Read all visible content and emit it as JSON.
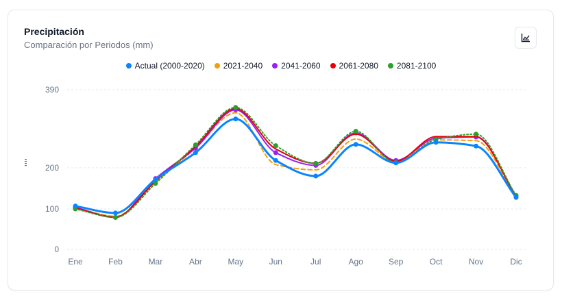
{
  "header": {
    "title": "Precipitación",
    "subtitle": "Comparación por Periodos (mm)"
  },
  "chart_button": {
    "icon": "chart-icon"
  },
  "colors": {
    "grid": "#e5e7eb",
    "tick": "#64748b"
  },
  "chart_data": {
    "type": "line",
    "categories": [
      "Ene",
      "Feb",
      "Mar",
      "Abr",
      "May",
      "Jun",
      "Jul",
      "Ago",
      "Sep",
      "Oct",
      "Nov",
      "Dic"
    ],
    "y_ticks": [
      0,
      100,
      200,
      390
    ],
    "ylim": [
      0,
      390
    ],
    "legend_position": "top",
    "grid": true,
    "series": [
      {
        "name": "Actual (2000-2020)",
        "color": "#0a84ff",
        "dash": "solid",
        "markers": true,
        "values": [
          107,
          90,
          172,
          237,
          319,
          218,
          180,
          257,
          212,
          262,
          253,
          128
        ]
      },
      {
        "name": "2021-2040",
        "color": "#f59e0b",
        "dash": "dashed",
        "markers": false,
        "values": [
          103,
          82,
          165,
          248,
          334,
          208,
          195,
          270,
          215,
          268,
          266,
          130
        ]
      },
      {
        "name": "2041-2060",
        "color": "#9b1ff5",
        "dash": "solid",
        "markers": true,
        "values": [
          104,
          79,
          174,
          248,
          341,
          237,
          206,
          285,
          218,
          272,
          275,
          132
        ]
      },
      {
        "name": "2061-2080",
        "color": "#e8000b",
        "dash": "solid",
        "markers": false,
        "values": [
          102,
          80,
          168,
          252,
          344,
          246,
          211,
          282,
          216,
          276,
          276,
          131
        ]
      },
      {
        "name": "2081-2100",
        "color": "#2ca02c",
        "dash": "dotted",
        "markers": true,
        "values": [
          100,
          79,
          162,
          256,
          347,
          254,
          211,
          289,
          213,
          269,
          282,
          133
        ]
      }
    ]
  }
}
